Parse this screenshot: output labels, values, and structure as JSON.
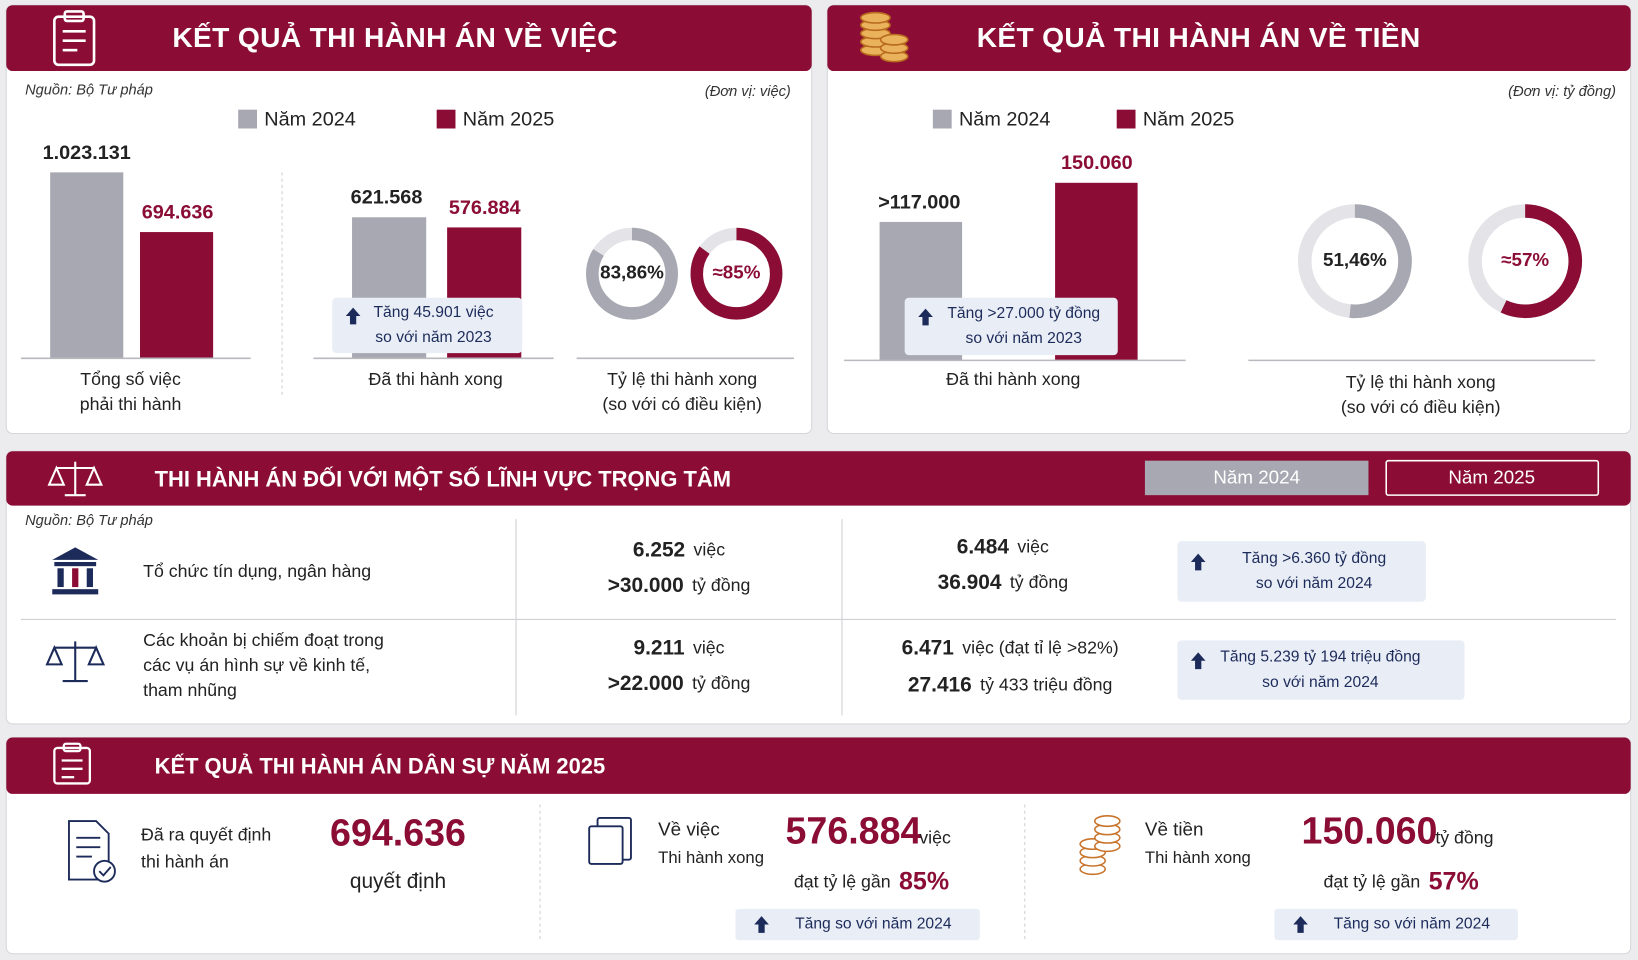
{
  "panel_cases": {
    "title": "KẾT QUẢ THI HÀNH ÁN VỀ VIỆC",
    "source": "Nguồn: Bộ Tư pháp",
    "unit": "(Đơn vị: việc)",
    "legend": [
      "Năm 2024",
      "Năm 2025"
    ],
    "colors": [
      "#a7a8b1",
      "#8b0d36"
    ],
    "bar_groups": [
      {
        "values": [
          1023131,
          694636
        ],
        "value_labels": [
          "1.023.131",
          "694.636"
        ],
        "label": [
          "Tổng số việc",
          "phải thi hành"
        ]
      },
      {
        "values": [
          621568,
          576884
        ],
        "value_labels": [
          "621.568",
          "576.884"
        ],
        "label": [
          "Đã thi hành xong"
        ],
        "note": [
          "Tăng 45.901 việc",
          "so với năm 2023"
        ]
      }
    ],
    "rings": {
      "values": [
        83.86,
        85
      ],
      "value_labels": [
        "83,86%",
        "≈85%"
      ],
      "label": [
        "Tỷ lệ thi hành xong",
        "(so với có điều kiện)"
      ]
    }
  },
  "panel_money": {
    "title": "KẾT QUẢ THI HÀNH ÁN VỀ TIỀN",
    "unit": "(Đơn vị: tỷ đồng)",
    "legend": [
      "Năm 2024",
      "Năm 2025"
    ],
    "colors": [
      "#a7a8b1",
      "#8b0d36"
    ],
    "bar_groups": [
      {
        "values": [
          117000,
          150060
        ],
        "value_labels": [
          ">117.000",
          "150.060"
        ],
        "label": [
          "Đã thi hành xong"
        ],
        "note": [
          "Tăng >27.000 tỷ đồng",
          "so với năm 2023"
        ]
      }
    ],
    "rings": {
      "values": [
        51.46,
        57
      ],
      "value_labels": [
        "51,46%",
        "≈57%"
      ],
      "label": [
        "Tỷ lệ thi hành xong",
        "(so với có điều kiện)"
      ]
    }
  },
  "focus": {
    "title": "THI HÀNH ÁN ĐỐI VỚI MỘT SỐ LĨNH VỰC TRỌNG TÂM",
    "years": [
      "Năm 2024",
      "Năm 2025"
    ],
    "source": "Nguồn: Bộ Tư pháp",
    "rows": [
      {
        "label": [
          "Tổ chức tín dụng, ngân hàng"
        ],
        "year_2024": [
          [
            "6.252",
            "việc"
          ],
          [
            ">30.000",
            "tỷ đồng"
          ]
        ],
        "year_2025": [
          [
            "6.484",
            "việc"
          ],
          [
            "36.904",
            "tỷ đồng"
          ]
        ],
        "note": [
          "Tăng >6.360 tỷ đồng",
          "so với năm 2024"
        ]
      },
      {
        "label": [
          "Các khoản bị chiếm đoạt trong",
          "các vụ án hình sự về kinh tế,",
          "tham nhũng"
        ],
        "year_2024": [
          [
            "9.211",
            "việc"
          ],
          [
            ">22.000",
            "tỷ đồng"
          ]
        ],
        "year_2025": [
          [
            "6.471",
            "việc (đạt tỉ lệ >82%)"
          ],
          [
            "27.416",
            "tỷ 433 triệu đồng"
          ]
        ],
        "note": [
          "Tăng 5.239 tỷ 194 triệu đồng",
          "so với năm 2024"
        ]
      }
    ]
  },
  "summary": {
    "title": "KẾT QUẢ THI HÀNH ÁN DÂN SỰ NĂM 2025",
    "items": [
      {
        "label": [
          "Đã ra quyết định",
          "thi hành án"
        ],
        "value": "694.636",
        "unit": "quyết định"
      },
      {
        "label": [
          "Về việc",
          "Thi hành xong"
        ],
        "value": "576.884",
        "unit": "việc",
        "rate_text": "đạt tỷ lệ gần",
        "rate": "85%",
        "badge": "Tăng so với năm 2024"
      },
      {
        "label": [
          "Về tiền",
          "Thi hành xong"
        ],
        "value": "150.060",
        "unit": "tỷ đồng",
        "rate_text": "đạt tỷ lệ gần",
        "rate": "57%",
        "badge": "Tăng so với năm 2024"
      }
    ]
  }
}
